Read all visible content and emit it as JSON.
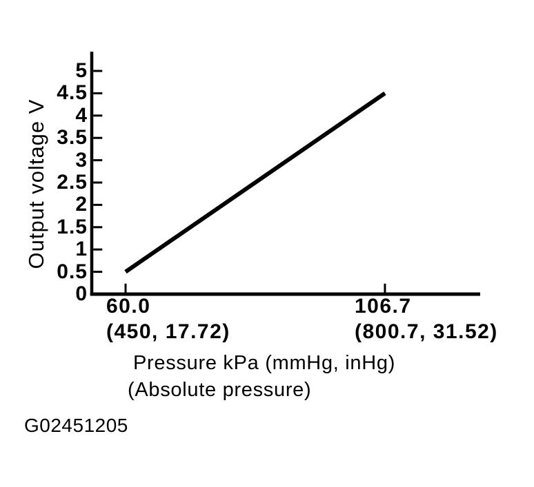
{
  "figure": {
    "code": "G02451205",
    "background_color": "#ffffff",
    "ink_color": "#000000"
  },
  "chart_data": {
    "type": "line",
    "title": "",
    "ylabel": "Output voltage V",
    "xlabel_line1": "Pressure kPa (mmHg, inHg)",
    "xlabel_line2": "(Absolute pressure)",
    "ylim": [
      0,
      5.4
    ],
    "xlim": [
      60,
      124
    ],
    "grid": false,
    "legend_position": "none",
    "line_color": "#000000",
    "y_ticks": [
      {
        "value": 0,
        "label": "0"
      },
      {
        "value": 0.5,
        "label": "0.5"
      },
      {
        "value": 1,
        "label": "1"
      },
      {
        "value": 1.5,
        "label": "1.5"
      },
      {
        "value": 2,
        "label": "2"
      },
      {
        "value": 2.5,
        "label": "2.5"
      },
      {
        "value": 3,
        "label": "3"
      },
      {
        "value": 3.5,
        "label": "3.5"
      },
      {
        "value": 4,
        "label": "4"
      },
      {
        "value": 4.5,
        "label": "4.5"
      },
      {
        "value": 5,
        "label": "5"
      }
    ],
    "x_ticks": [
      {
        "value": 60.0,
        "label": "60.0",
        "sublabel": "(450, 17.72)"
      },
      {
        "value": 106.7,
        "label": "106.7",
        "sublabel": "(800.7, 31.52)"
      }
    ],
    "series": [
      {
        "name": "sensor-output-line",
        "color": "#000000",
        "points": [
          {
            "x": 60.0,
            "y": 0.5
          },
          {
            "x": 106.7,
            "y": 4.5
          }
        ]
      }
    ]
  }
}
